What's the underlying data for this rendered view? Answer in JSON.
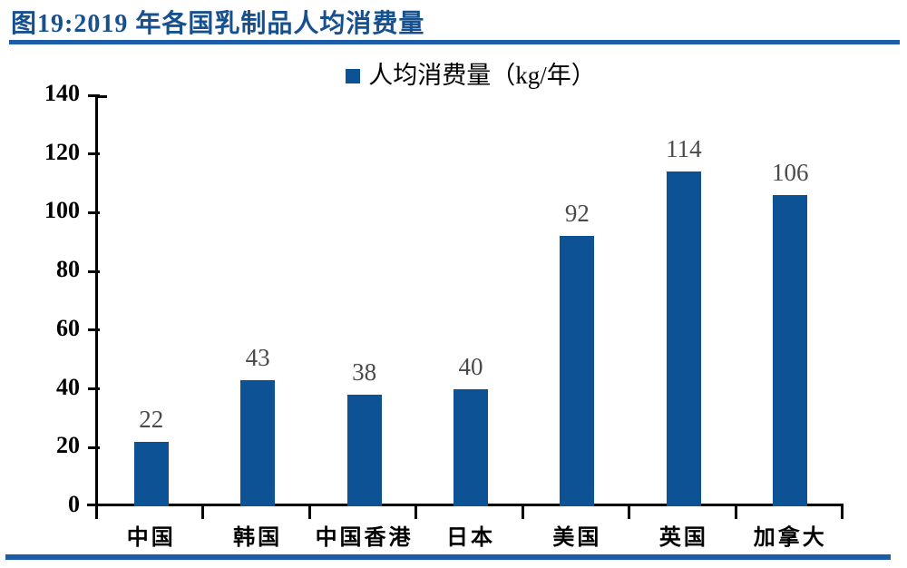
{
  "figure": {
    "title": "图19:2019 年各国乳制品人均消费量",
    "title_color": "#17508f",
    "rule_color": "#1d5ca8"
  },
  "chart_data": {
    "type": "bar",
    "title": "图19:2019 年各国乳制品人均消费量",
    "legend": "人均消费量（kg/年）",
    "legend_position": "top-center",
    "categories": [
      "中国",
      "韩国",
      "中国香港",
      "日本",
      "美国",
      "英国",
      "加拿大"
    ],
    "values": [
      22,
      43,
      38,
      40,
      92,
      114,
      106
    ],
    "xlabel": "",
    "ylabel": "",
    "ylim": [
      0,
      140
    ],
    "yticks": [
      0,
      20,
      40,
      60,
      80,
      100,
      120,
      140
    ],
    "grid": false,
    "bar_color": "#0d5295",
    "value_label_color": "#4a4a4a",
    "axis_color": "#000000"
  }
}
